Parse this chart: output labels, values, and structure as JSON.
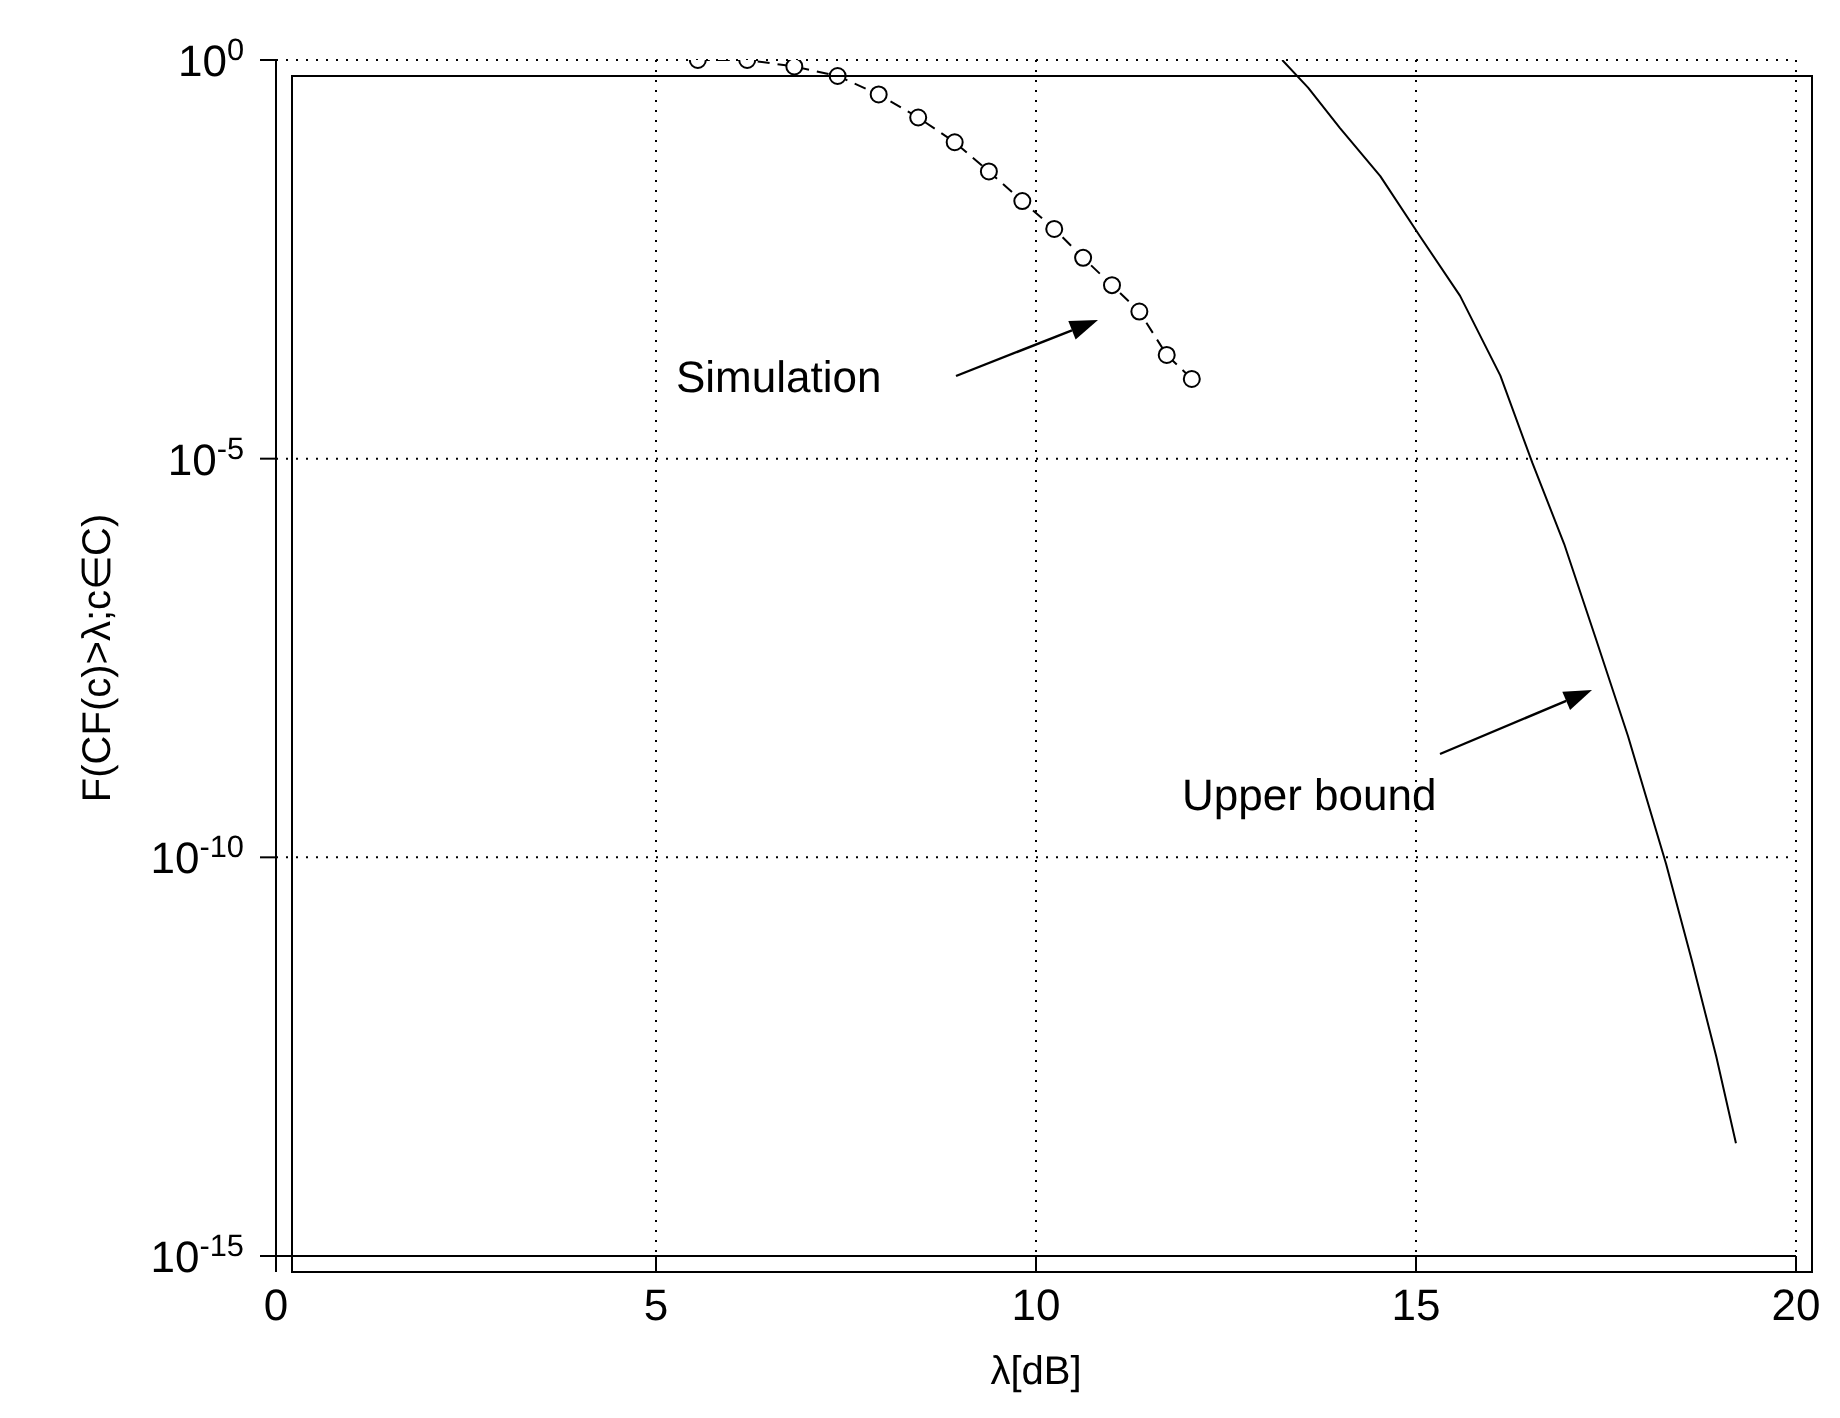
{
  "chart_data": {
    "type": "line",
    "xlabel": "λ[dB]",
    "ylabel": "F(CF(c)>λ;c∈C)",
    "log": "y",
    "grid": true,
    "legend": false,
    "xlim": [
      0,
      20
    ],
    "xticks": [
      0,
      5,
      10,
      15,
      20
    ],
    "ylim": [
      1e-15,
      1
    ],
    "yticks": [
      {
        "value": 1e-15,
        "label": "10$^{-15}$"
      },
      {
        "value": 1e-10,
        "label": "10$^{-10}$"
      },
      {
        "value": 1e-05,
        "label": "10$^{-5}$"
      },
      {
        "value": 1,
        "label": "10$^{0}$"
      }
    ],
    "series": [
      {
        "color": "#000000",
        "marker": "circle",
        "line_style": "dashed",
        "x": [
          5.55,
          6.2,
          6.82,
          7.39,
          7.93,
          8.45,
          8.93,
          9.38,
          9.82,
          10.24,
          10.62,
          11.0,
          11.36,
          11.72,
          12.05
        ],
        "values": [
          1,
          1,
          0.83,
          0.63,
          0.37,
          0.19,
          0.093,
          0.04,
          0.017,
          0.0076,
          0.0033,
          0.0015,
          0.0007,
          0.0002,
          0.0001
        ]
      },
      {
        "color": "#000000",
        "marker": "none",
        "line_style": "solid",
        "x": [
          13.24,
          13.58,
          14.0,
          14.53,
          15.05,
          15.58,
          16.11,
          16.53,
          16.95,
          17.37,
          17.79,
          18.29,
          18.63,
          18.95,
          19.21
        ],
        "values": [
          1,
          0.45,
          0.14,
          0.035,
          0.0062,
          0.0011,
          0.00011,
          8.9e-06,
          8.5e-07,
          5.4e-08,
          3.3e-09,
          8.3e-11,
          5.1e-12,
          3.2e-13,
          2.6e-14
        ]
      }
    ],
    "annotations": [
      "Simulation",
      "Upper bound"
    ]
  }
}
